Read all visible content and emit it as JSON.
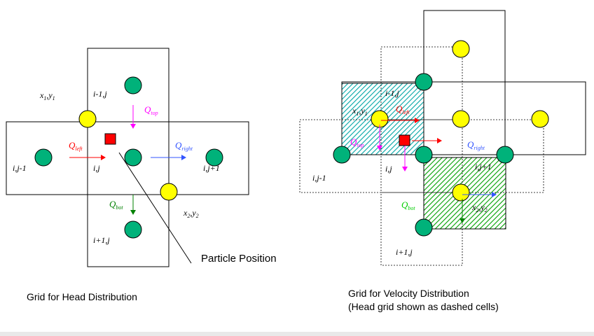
{
  "left_diagram": {
    "caption": "Grid for Head Distribution",
    "cell_labels": {
      "top": "i-1,j",
      "left": "i,j-1",
      "center": "i,j",
      "right": "i,j+1",
      "bottom": "i+1,j"
    },
    "corner_labels": {
      "x1": "x",
      "x1_sub": "1",
      "y1": "y",
      "y1_sub": "1",
      "x2": "x",
      "x2_sub": "2",
      "y2": "y",
      "y2_sub": "2"
    },
    "flows": {
      "top": {
        "symbol": "Q",
        "sub": "top"
      },
      "left": {
        "symbol": "Q",
        "sub": "left"
      },
      "right": {
        "symbol": "Q",
        "sub": "right"
      },
      "bot": {
        "symbol": "Q",
        "sub": "bot"
      }
    },
    "particle_label": "Particle Position"
  },
  "right_diagram": {
    "caption_line1": "Grid for Velocity Distribution",
    "caption_line2": "(Head grid shown as dashed cells)",
    "cell_labels": {
      "top": "i-1,j",
      "left": "i,j-1",
      "center": "i,j",
      "right": "i,j+1",
      "bottom": "i+1,j"
    },
    "corner_labels": {
      "x1": "x",
      "x1_sub": "1",
      "y1": "y",
      "y1_sub": "1",
      "x2": "x",
      "x2_sub": "2",
      "y2": "y",
      "y2_sub": "2"
    },
    "flows": {
      "top": {
        "symbol": "Q",
        "sub": "top"
      },
      "left": {
        "symbol": "Q",
        "sub": "left"
      },
      "right": {
        "symbol": "Q",
        "sub": "right"
      },
      "bot": {
        "symbol": "Q",
        "sub": "bot"
      }
    }
  },
  "colors": {
    "node_fill": "#00b27a",
    "corner_node_fill": "#ffff00",
    "particle": "#ff0000",
    "q_top": "#ff00ff",
    "q_left": "#ff0000",
    "q_right": "#3355ff",
    "q_bot": "#008000",
    "hatch_cyan": "#00a5a5",
    "hatch_green": "#00a000"
  }
}
